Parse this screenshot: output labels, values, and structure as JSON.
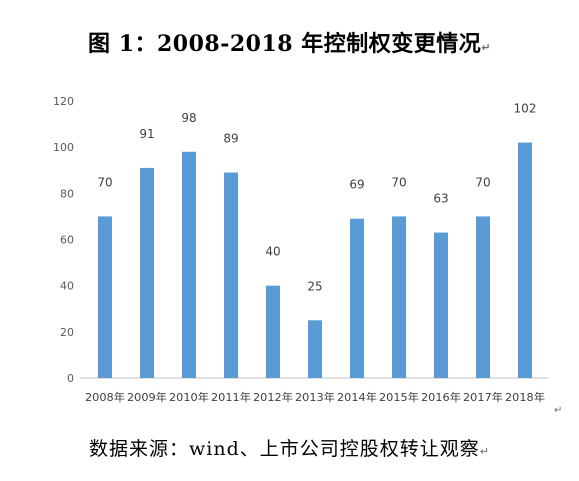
{
  "document": {
    "title": "图 1：2008-2018 年控制权变更情况",
    "source": "数据来源：wind、上市公司控股权转让观察"
  },
  "chart_data": {
    "type": "bar",
    "title": "图 1：2008-2018 年控制权变更情况",
    "xlabel": "",
    "ylabel": "",
    "categories": [
      "2008年",
      "2009年",
      "2010年",
      "2011年",
      "2012年",
      "2013年",
      "2014年",
      "2015年",
      "2016年",
      "2017年",
      "2018年"
    ],
    "values": [
      70,
      91,
      98,
      89,
      40,
      25,
      69,
      70,
      63,
      70,
      102
    ],
    "ylim": [
      0,
      120
    ],
    "yticks": [
      0,
      20,
      40,
      60,
      80,
      100,
      120
    ],
    "grid": false,
    "legend": "none",
    "bar_color": "#5b9bd5",
    "data_labels": true
  }
}
